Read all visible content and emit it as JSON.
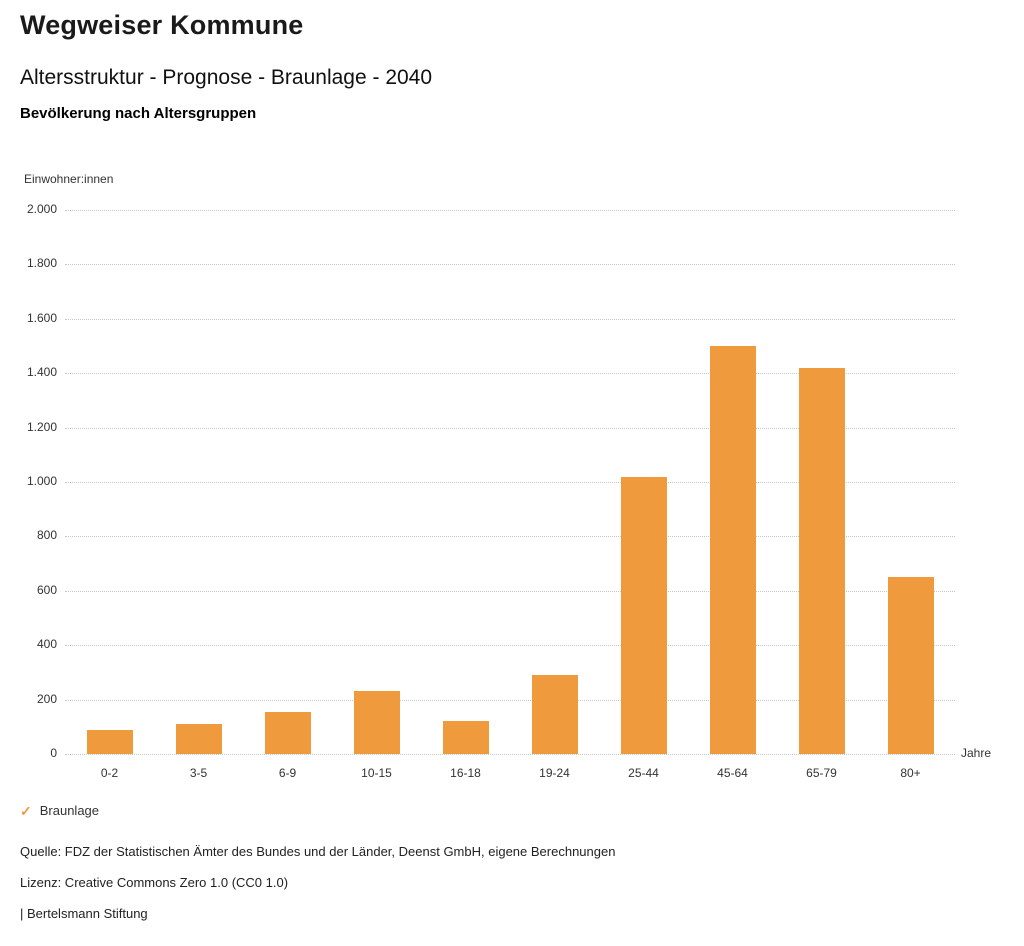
{
  "header": {
    "title": "Wegweiser Kommune",
    "subtitle": "Altersstruktur - Prognose - Braunlage - 2040",
    "chart_heading": "Bevölkerung nach Altersgruppen"
  },
  "chart_data": {
    "type": "bar",
    "title": "Bevölkerung nach Altersgruppen",
    "ylabel": "Einwohner:innen",
    "xlabel": "Jahre",
    "categories": [
      "0-2",
      "3-5",
      "6-9",
      "10-15",
      "16-18",
      "19-24",
      "25-44",
      "45-64",
      "65-79",
      "80+"
    ],
    "series": [
      {
        "name": "Braunlage",
        "color": "#ef9b3d",
        "values": [
          90,
          110,
          155,
          230,
          120,
          290,
          1020,
          1500,
          1420,
          650
        ]
      }
    ],
    "ylim": [
      0,
      2000
    ],
    "ytick_step": 200,
    "ytick_labels": [
      "0",
      "200",
      "400",
      "600",
      "800",
      "1.000",
      "1.200",
      "1.400",
      "1.600",
      "1.800",
      "2.000"
    ],
    "grid": true,
    "legend_position": "bottom"
  },
  "legend": {
    "check_icon": "✓",
    "items": [
      {
        "label": "Braunlage",
        "color": "#ef9b3d"
      }
    ]
  },
  "footer": {
    "source": "Quelle: FDZ der Statistischen Ämter des Bundes und der Länder, Deenst GmbH, eigene Berechnungen",
    "license": "Lizenz: Creative Commons Zero 1.0 (CC0 1.0)",
    "brand": "| Bertelsmann Stiftung"
  }
}
